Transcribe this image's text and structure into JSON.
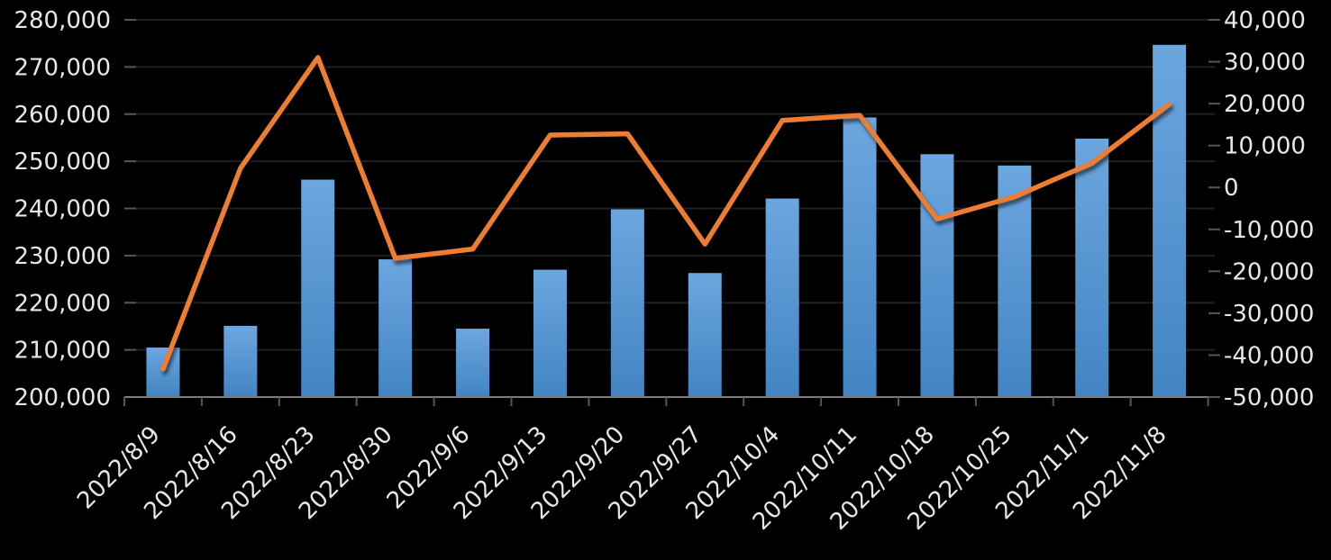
{
  "chart_data": {
    "type": "combo",
    "title": "",
    "legend": "none",
    "grid": true,
    "categories": [
      "2022/8/9",
      "2022/8/16",
      "2022/8/23",
      "2022/8/30",
      "2022/9/6",
      "2022/9/13",
      "2022/9/20",
      "2022/9/27",
      "2022/10/4",
      "2022/10/11",
      "2022/10/18",
      "2022/10/25",
      "2022/11/1",
      "2022/11/8"
    ],
    "series": [
      {
        "name": "bars",
        "type": "bar",
        "axis": "left",
        "values": [
          210500,
          215100,
          246100,
          229200,
          214500,
          227000,
          239800,
          226300,
          242100,
          259300,
          251500,
          249100,
          254800,
          274700
        ]
      },
      {
        "name": "line",
        "type": "line",
        "axis": "right",
        "values": [
          -43300,
          4600,
          31000,
          -16900,
          -14700,
          12500,
          12800,
          -13500,
          16000,
          17200,
          -7500,
          -2200,
          5800,
          19900
        ]
      }
    ],
    "left_axis": {
      "min": 200000,
      "max": 280000,
      "step": 10000,
      "tick_labels": [
        "280,000",
        "270,000",
        "260,000",
        "250,000",
        "240,000",
        "230,000",
        "220,000",
        "210,000",
        "200,000"
      ]
    },
    "right_axis": {
      "min": -50000,
      "max": 40000,
      "step": 10000,
      "tick_labels": [
        "40,000",
        "30,000",
        "20,000",
        "10,000",
        "0",
        "-10,000",
        "-20,000",
        "-30,000",
        "-40,000",
        "-50,000"
      ]
    }
  },
  "colors": {
    "background": "#000000",
    "bar_gradient_top": "#6CA6DF",
    "bar_gradient_bottom": "#4284C3",
    "line": "#ED7D31",
    "gridline": "#212121",
    "axis_line": "#7D7D7D",
    "tick": "#565656",
    "axis_label": "#E5E7EB"
  }
}
